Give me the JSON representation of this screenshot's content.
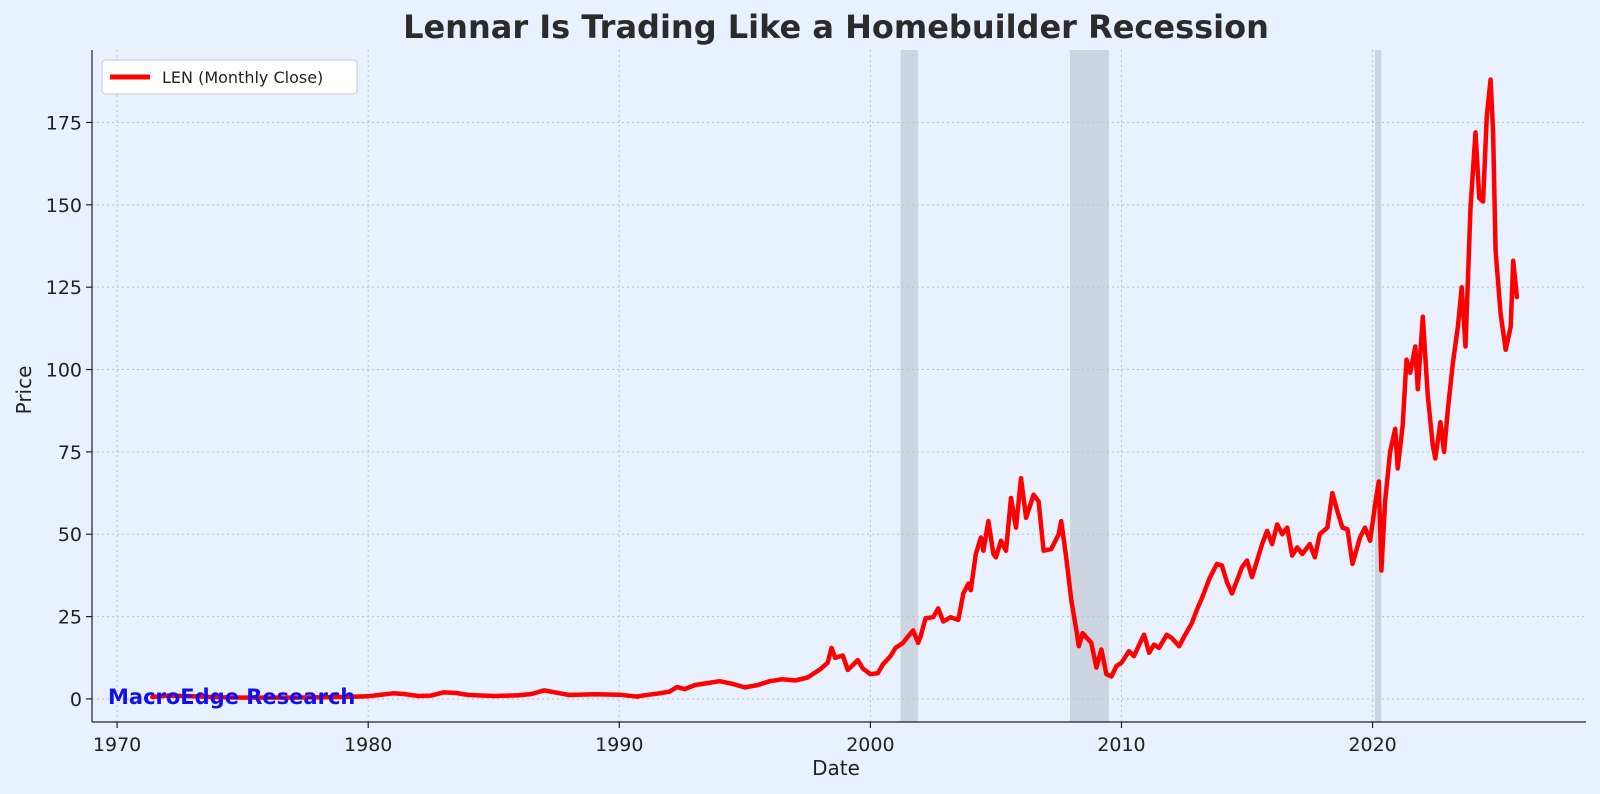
{
  "colors": {
    "background": "#e8f1fd",
    "line": "#ff0000",
    "recession": "#b4bcc8",
    "grid": "#b8c3d0",
    "ylabel": "#ff0000",
    "watermark": "#1010f0"
  },
  "chart_data": {
    "type": "line",
    "title": "Lennar Is Trading Like a Homebuilder Recession",
    "xlabel": "Date",
    "ylabel": "Price",
    "xlim": [
      1969,
      2028.5
    ],
    "ylim": [
      -7,
      197
    ],
    "xticks": [
      1970,
      1980,
      1990,
      2000,
      2010,
      2020
    ],
    "yticks": [
      0,
      25,
      50,
      75,
      100,
      125,
      150,
      175
    ],
    "grid": true,
    "legend_position": "top-left",
    "watermark": "MacroEdge Research",
    "recession_bands": [
      [
        2001.2,
        2001.9
      ],
      [
        2007.95,
        2009.5
      ],
      [
        2020.1,
        2020.35
      ]
    ],
    "series": [
      {
        "name": "LEN (Monthly Close)",
        "points": [
          [
            1971.4,
            0.6
          ],
          [
            1972.0,
            1.0
          ],
          [
            1973.0,
            0.8
          ],
          [
            1974.0,
            0.5
          ],
          [
            1975.0,
            0.4
          ],
          [
            1977.0,
            0.4
          ],
          [
            1979.0,
            0.6
          ],
          [
            1980.0,
            0.8
          ],
          [
            1981.0,
            1.7
          ],
          [
            1981.5,
            1.4
          ],
          [
            1982.0,
            0.9
          ],
          [
            1982.5,
            1.0
          ],
          [
            1983.0,
            2.0
          ],
          [
            1983.5,
            1.8
          ],
          [
            1984.0,
            1.2
          ],
          [
            1985.0,
            0.9
          ],
          [
            1986.0,
            1.1
          ],
          [
            1986.5,
            1.5
          ],
          [
            1987.0,
            2.6
          ],
          [
            1987.5,
            1.9
          ],
          [
            1988.0,
            1.2
          ],
          [
            1989.0,
            1.4
          ],
          [
            1990.0,
            1.3
          ],
          [
            1990.7,
            0.7
          ],
          [
            1991.0,
            1.1
          ],
          [
            1991.5,
            1.6
          ],
          [
            1992.0,
            2.2
          ],
          [
            1992.3,
            3.6
          ],
          [
            1992.6,
            3.0
          ],
          [
            1993.0,
            4.2
          ],
          [
            1993.5,
            4.8
          ],
          [
            1994.0,
            5.4
          ],
          [
            1994.5,
            4.6
          ],
          [
            1995.0,
            3.5
          ],
          [
            1995.5,
            4.2
          ],
          [
            1996.0,
            5.4
          ],
          [
            1996.5,
            6.0
          ],
          [
            1997.0,
            5.6
          ],
          [
            1997.5,
            6.5
          ],
          [
            1998.0,
            9.0
          ],
          [
            1998.3,
            11.0
          ],
          [
            1998.45,
            15.5
          ],
          [
            1998.6,
            12.5
          ],
          [
            1998.9,
            13.2
          ],
          [
            1999.1,
            8.8
          ],
          [
            1999.5,
            11.8
          ],
          [
            1999.7,
            9.2
          ],
          [
            2000.0,
            7.5
          ],
          [
            2000.3,
            7.8
          ],
          [
            2000.5,
            10.5
          ],
          [
            2000.8,
            13.0
          ],
          [
            2001.0,
            15.5
          ],
          [
            2001.3,
            17.0
          ],
          [
            2001.5,
            19.0
          ],
          [
            2001.7,
            20.8
          ],
          [
            2001.9,
            17.0
          ],
          [
            2002.0,
            19.0
          ],
          [
            2002.2,
            24.5
          ],
          [
            2002.5,
            24.8
          ],
          [
            2002.7,
            27.5
          ],
          [
            2002.9,
            23.5
          ],
          [
            2003.2,
            24.8
          ],
          [
            2003.5,
            24.0
          ],
          [
            2003.7,
            32.0
          ],
          [
            2003.9,
            35.0
          ],
          [
            2004.0,
            33.0
          ],
          [
            2004.2,
            44.0
          ],
          [
            2004.4,
            49.0
          ],
          [
            2004.5,
            45.0
          ],
          [
            2004.7,
            54.0
          ],
          [
            2004.9,
            44.0
          ],
          [
            2005.0,
            43.0
          ],
          [
            2005.2,
            48.0
          ],
          [
            2005.4,
            45.0
          ],
          [
            2005.6,
            61.0
          ],
          [
            2005.8,
            52.0
          ],
          [
            2006.0,
            67.0
          ],
          [
            2006.2,
            55.0
          ],
          [
            2006.5,
            62.0
          ],
          [
            2006.7,
            60.0
          ],
          [
            2006.9,
            45.0
          ],
          [
            2007.2,
            45.5
          ],
          [
            2007.5,
            50.0
          ],
          [
            2007.6,
            54.0
          ],
          [
            2007.8,
            43.0
          ],
          [
            2008.0,
            30.0
          ],
          [
            2008.2,
            21.0
          ],
          [
            2008.3,
            16.0
          ],
          [
            2008.45,
            20.0
          ],
          [
            2008.8,
            17.0
          ],
          [
            2009.0,
            9.5
          ],
          [
            2009.2,
            15.0
          ],
          [
            2009.4,
            7.5
          ],
          [
            2009.6,
            6.8
          ],
          [
            2009.8,
            10.0
          ],
          [
            2010.0,
            11.0
          ],
          [
            2010.3,
            14.5
          ],
          [
            2010.5,
            13.0
          ],
          [
            2010.8,
            18.0
          ],
          [
            2010.9,
            19.5
          ],
          [
            2011.1,
            14.0
          ],
          [
            2011.3,
            16.5
          ],
          [
            2011.5,
            15.5
          ],
          [
            2011.8,
            19.5
          ],
          [
            2012.0,
            18.5
          ],
          [
            2012.3,
            16.0
          ],
          [
            2012.5,
            19.0
          ],
          [
            2012.8,
            23.0
          ],
          [
            2013.0,
            27.0
          ],
          [
            2013.2,
            30.5
          ],
          [
            2013.5,
            36.5
          ],
          [
            2013.8,
            41.0
          ],
          [
            2014.0,
            40.5
          ],
          [
            2014.2,
            35.5
          ],
          [
            2014.4,
            32.0
          ],
          [
            2014.6,
            36.0
          ],
          [
            2014.8,
            40.0
          ],
          [
            2015.0,
            42.0
          ],
          [
            2015.2,
            37.0
          ],
          [
            2015.4,
            42.0
          ],
          [
            2015.6,
            47.0
          ],
          [
            2015.8,
            51.0
          ],
          [
            2016.0,
            47.0
          ],
          [
            2016.2,
            53.0
          ],
          [
            2016.4,
            50.0
          ],
          [
            2016.6,
            52.0
          ],
          [
            2016.8,
            43.5
          ],
          [
            2017.0,
            46.0
          ],
          [
            2017.2,
            44.0
          ],
          [
            2017.5,
            47.0
          ],
          [
            2017.7,
            43.0
          ],
          [
            2017.9,
            50.0
          ],
          [
            2018.2,
            52.0
          ],
          [
            2018.4,
            62.5
          ],
          [
            2018.6,
            57.0
          ],
          [
            2018.8,
            52.0
          ],
          [
            2019.0,
            51.5
          ],
          [
            2019.2,
            41.0
          ],
          [
            2019.5,
            49.0
          ],
          [
            2019.7,
            52.0
          ],
          [
            2019.9,
            48.0
          ],
          [
            2020.1,
            59.0
          ],
          [
            2020.25,
            66.0
          ],
          [
            2020.35,
            39.0
          ],
          [
            2020.5,
            60.0
          ],
          [
            2020.7,
            75.0
          ],
          [
            2020.9,
            82.0
          ],
          [
            2021.0,
            70.0
          ],
          [
            2021.2,
            83.0
          ],
          [
            2021.35,
            103.0
          ],
          [
            2021.5,
            99.0
          ],
          [
            2021.7,
            107.0
          ],
          [
            2021.8,
            94.0
          ],
          [
            2022.0,
            116.0
          ],
          [
            2022.2,
            92.0
          ],
          [
            2022.4,
            77.0
          ],
          [
            2022.5,
            73.0
          ],
          [
            2022.7,
            84.0
          ],
          [
            2022.85,
            75.0
          ],
          [
            2023.0,
            88.0
          ],
          [
            2023.2,
            102.0
          ],
          [
            2023.4,
            113.0
          ],
          [
            2023.55,
            125.0
          ],
          [
            2023.7,
            107.0
          ],
          [
            2023.9,
            149.0
          ],
          [
            2024.1,
            172.0
          ],
          [
            2024.25,
            152.0
          ],
          [
            2024.4,
            151.0
          ],
          [
            2024.55,
            177.0
          ],
          [
            2024.7,
            188.0
          ],
          [
            2024.8,
            172.0
          ],
          [
            2024.9,
            136.0
          ],
          [
            2025.1,
            117.0
          ],
          [
            2025.3,
            106.0
          ],
          [
            2025.5,
            113.0
          ],
          [
            2025.6,
            133.0
          ],
          [
            2025.75,
            122.0
          ]
        ]
      }
    ]
  }
}
